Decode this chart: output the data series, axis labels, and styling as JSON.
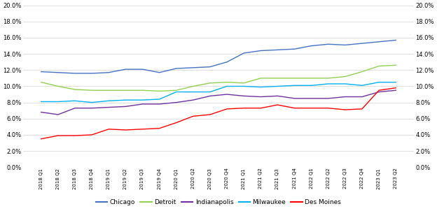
{
  "quarters": [
    "2018 Q1",
    "2018 Q2",
    "2018 Q3",
    "2018 Q4",
    "2019 Q1",
    "2019 Q2",
    "2019 Q3",
    "2019 Q4",
    "2020 Q1",
    "2020 Q2",
    "2020 Q3",
    "2020 Q4",
    "2021 Q1",
    "2021 Q2",
    "2021 Q3",
    "2021 Q4",
    "2022 Q1",
    "2022 Q2",
    "2022 Q3",
    "2022 Q4",
    "2023 Q1",
    "2023 Q2"
  ],
  "Chicago": [
    0.118,
    0.117,
    0.116,
    0.116,
    0.117,
    0.121,
    0.121,
    0.117,
    0.122,
    0.123,
    0.124,
    0.13,
    0.141,
    0.144,
    0.145,
    0.146,
    0.15,
    0.152,
    0.151,
    0.153,
    0.155,
    0.157
  ],
  "Detroit": [
    0.105,
    0.1,
    0.096,
    0.095,
    0.095,
    0.095,
    0.095,
    0.094,
    0.095,
    0.1,
    0.104,
    0.105,
    0.104,
    0.11,
    0.11,
    0.11,
    0.11,
    0.11,
    0.112,
    0.118,
    0.125,
    0.126
  ],
  "Indianapolis": [
    0.068,
    0.065,
    0.073,
    0.073,
    0.074,
    0.075,
    0.078,
    0.078,
    0.08,
    0.083,
    0.088,
    0.09,
    0.088,
    0.087,
    0.088,
    0.085,
    0.085,
    0.085,
    0.087,
    0.087,
    0.093,
    0.095
  ],
  "Milwaukee": [
    0.081,
    0.081,
    0.082,
    0.08,
    0.082,
    0.083,
    0.083,
    0.084,
    0.093,
    0.093,
    0.093,
    0.1,
    0.1,
    0.099,
    0.1,
    0.101,
    0.101,
    0.103,
    0.103,
    0.101,
    0.105,
    0.105
  ],
  "Des Moines": [
    0.035,
    0.039,
    0.039,
    0.04,
    0.047,
    0.046,
    0.047,
    0.048,
    0.055,
    0.063,
    0.065,
    0.072,
    0.073,
    0.073,
    0.077,
    0.073,
    0.073,
    0.073,
    0.071,
    0.072,
    0.095,
    0.098
  ],
  "colors": {
    "Chicago": "#4472C4",
    "Detroit": "#92D050",
    "Indianapolis": "#7030A0",
    "Milwaukee": "#00B0F0",
    "Des Moines": "#FF0000"
  },
  "ylim": [
    0.0,
    0.2
  ],
  "yticks": [
    0.0,
    0.02,
    0.04,
    0.06,
    0.08,
    0.1,
    0.12,
    0.14,
    0.16,
    0.18,
    0.2
  ],
  "background_color": "#ffffff",
  "grid_color": "#d9d9d9"
}
